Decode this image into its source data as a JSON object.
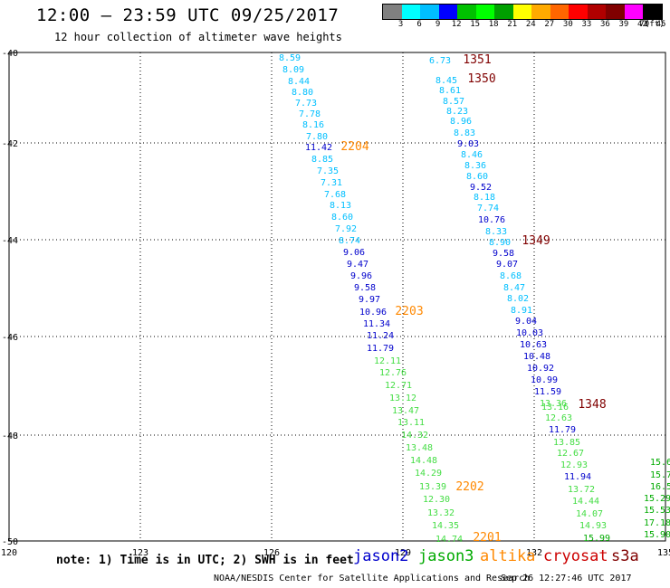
{
  "header": {
    "title": "12:00 – 23:59 UTC 09/25/2017",
    "subtitle": "12 hour collection of altimeter wave heights"
  },
  "legend": {
    "colors": [
      "#808080",
      "#00ffff",
      "#00bfff",
      "#0000ff",
      "#00c000",
      "#00ff00",
      "#00a000",
      "#ffff00",
      "#ffaa00",
      "#ff6600",
      "#ff0000",
      "#b00000",
      "#800000",
      "#ff00ff",
      "#000000"
    ],
    "labels": [
      "3",
      "6",
      "9",
      "12",
      "15",
      "18",
      "21",
      "24",
      "27",
      "30",
      "33",
      "36",
      "39",
      "42",
      "45",
      "70"
    ],
    "unit": "(ft)"
  },
  "note": "note:  1) Time is in UTC;  2) SWH is in feet",
  "satellites": [
    {
      "name": "jason2",
      "color": "#0000cc"
    },
    {
      "name": "jason3",
      "color": "#00aa00"
    },
    {
      "name": "altika",
      "color": "#ff8800"
    },
    {
      "name": "cryosat",
      "color": "#cc0000"
    },
    {
      "name": "s3a",
      "color": "#800000"
    }
  ],
  "footer": "NOAA/NESDIS Center for Satellite Applications and Research",
  "timestamp": "Sep 26 12:27:46 UTC 2017",
  "map": {
    "lon_labels": [
      "120",
      "123",
      "126",
      "129",
      "132",
      "135"
    ],
    "lat_labels": [
      "-40",
      "-42",
      "-44",
      "-46",
      "-48",
      "-50"
    ]
  },
  "readings": [
    {
      "t": "8.59",
      "c": "#00bfff"
    },
    {
      "t": "8.09",
      "c": "#00bfff"
    },
    {
      "t": "8.44",
      "c": "#00bfff"
    },
    {
      "t": "8.80",
      "c": "#00bfff"
    },
    {
      "t": "7.73",
      "c": "#00bfff"
    },
    {
      "t": "7.78",
      "c": "#00bfff"
    },
    {
      "t": "8.16",
      "c": "#00bfff"
    },
    {
      "t": "7.80",
      "c": "#00bfff"
    },
    {
      "t": "11.42",
      "c": "#0000cc"
    },
    {
      "t": "8.85",
      "c": "#00bfff"
    },
    {
      "t": "7.35",
      "c": "#00bfff"
    },
    {
      "t": "7.31",
      "c": "#00bfff"
    },
    {
      "t": "7.68",
      "c": "#00bfff"
    },
    {
      "t": "8.13",
      "c": "#00bfff"
    },
    {
      "t": "8.60",
      "c": "#00bfff"
    },
    {
      "t": "7.92",
      "c": "#00bfff"
    },
    {
      "t": "8.74",
      "c": "#00bfff"
    },
    {
      "t": "9.06",
      "c": "#0000cc"
    },
    {
      "t": "9.47",
      "c": "#0000cc"
    },
    {
      "t": "9.96",
      "c": "#0000cc"
    },
    {
      "t": "9.58",
      "c": "#0000cc"
    },
    {
      "t": "9.97",
      "c": "#0000cc"
    },
    {
      "t": "10.96",
      "c": "#0000cc"
    },
    {
      "t": "11.34",
      "c": "#0000cc"
    },
    {
      "t": "11.24",
      "c": "#0000cc"
    },
    {
      "t": "11.79",
      "c": "#0000cc"
    },
    {
      "t": "12.11",
      "c": "#44dd44"
    },
    {
      "t": "12.76",
      "c": "#44dd44"
    },
    {
      "t": "12.71",
      "c": "#44dd44"
    },
    {
      "t": "13.12",
      "c": "#44dd44"
    },
    {
      "t": "13.47",
      "c": "#44dd44"
    },
    {
      "t": "13.11",
      "c": "#44dd44"
    },
    {
      "t": "14.32",
      "c": "#44dd44"
    },
    {
      "t": "13.48",
      "c": "#44dd44"
    },
    {
      "t": "14.48",
      "c": "#44dd44"
    },
    {
      "t": "14.29",
      "c": "#44dd44"
    },
    {
      "t": "13.39",
      "c": "#44dd44"
    },
    {
      "t": "12.30",
      "c": "#44dd44"
    },
    {
      "t": "13.32",
      "c": "#44dd44"
    },
    {
      "t": "14.35",
      "c": "#44dd44"
    },
    {
      "t": "14.74",
      "c": "#44dd44"
    },
    {
      "t": "6.73",
      "c": "#00bfff"
    },
    {
      "t": "8.45",
      "c": "#00bfff"
    },
    {
      "t": "8.61",
      "c": "#00bfff"
    },
    {
      "t": "8.57",
      "c": "#00bfff"
    },
    {
      "t": "8.23",
      "c": "#00bfff"
    },
    {
      "t": "8.96",
      "c": "#00bfff"
    },
    {
      "t": "8.83",
      "c": "#00bfff"
    },
    {
      "t": "9.03",
      "c": "#0000cc"
    },
    {
      "t": "8.46",
      "c": "#00bfff"
    },
    {
      "t": "8.36",
      "c": "#00bfff"
    },
    {
      "t": "8.60",
      "c": "#00bfff"
    },
    {
      "t": "9.52",
      "c": "#0000cc"
    },
    {
      "t": "8.18",
      "c": "#00bfff"
    },
    {
      "t": "7.74",
      "c": "#00bfff"
    },
    {
      "t": "10.76",
      "c": "#0000cc"
    },
    {
      "t": "8.33",
      "c": "#00bfff"
    },
    {
      "t": "8.90",
      "c": "#00bfff"
    },
    {
      "t": "9.58",
      "c": "#0000cc"
    },
    {
      "t": "9.07",
      "c": "#0000cc"
    },
    {
      "t": "8.68",
      "c": "#00bfff"
    },
    {
      "t": "8.47",
      "c": "#00bfff"
    },
    {
      "t": "8.02",
      "c": "#00bfff"
    },
    {
      "t": "8.91",
      "c": "#00bfff"
    },
    {
      "t": "9.04",
      "c": "#0000cc"
    },
    {
      "t": "10.03",
      "c": "#0000cc"
    },
    {
      "t": "10.63",
      "c": "#0000cc"
    },
    {
      "t": "10.48",
      "c": "#0000cc"
    },
    {
      "t": "10.92",
      "c": "#0000cc"
    },
    {
      "t": "10.99",
      "c": "#0000cc"
    },
    {
      "t": "11.59",
      "c": "#0000cc"
    },
    {
      "t": "13.36",
      "c": "#44dd44"
    },
    {
      "t": "13.16",
      "c": "#44dd44"
    },
    {
      "t": "12.63",
      "c": "#44dd44"
    },
    {
      "t": "11.79",
      "c": "#0000cc"
    },
    {
      "t": "13.85",
      "c": "#44dd44"
    },
    {
      "t": "12.67",
      "c": "#44dd44"
    },
    {
      "t": "12.93",
      "c": "#44dd44"
    },
    {
      "t": "11.94",
      "c": "#0000cc"
    },
    {
      "t": "13.72",
      "c": "#44dd44"
    },
    {
      "t": "14.44",
      "c": "#44dd44"
    },
    {
      "t": "14.07",
      "c": "#44dd44"
    },
    {
      "t": "14.93",
      "c": "#44dd44"
    },
    {
      "t": "15.99",
      "c": "#00aa00"
    },
    {
      "t": "15.6",
      "c": "#00aa00"
    },
    {
      "t": "15.7",
      "c": "#00aa00"
    },
    {
      "t": "16.5",
      "c": "#00aa00"
    },
    {
      "t": "15.29",
      "c": "#00aa00"
    },
    {
      "t": "15.53",
      "c": "#00aa00"
    },
    {
      "t": "17.18",
      "c": "#00aa00"
    },
    {
      "t": "15.90",
      "c": "#00aa00"
    }
  ],
  "time_labels": [
    {
      "t": "1351",
      "c": "#800000"
    },
    {
      "t": "1350",
      "c": "#800000"
    },
    {
      "t": "1349",
      "c": "#800000"
    },
    {
      "t": "1348",
      "c": "#800000"
    },
    {
      "t": "2204",
      "c": "#ff8800"
    },
    {
      "t": "2203",
      "c": "#ff8800"
    },
    {
      "t": "2202",
      "c": "#ff8800"
    },
    {
      "t": "2201",
      "c": "#ff8800"
    }
  ]
}
